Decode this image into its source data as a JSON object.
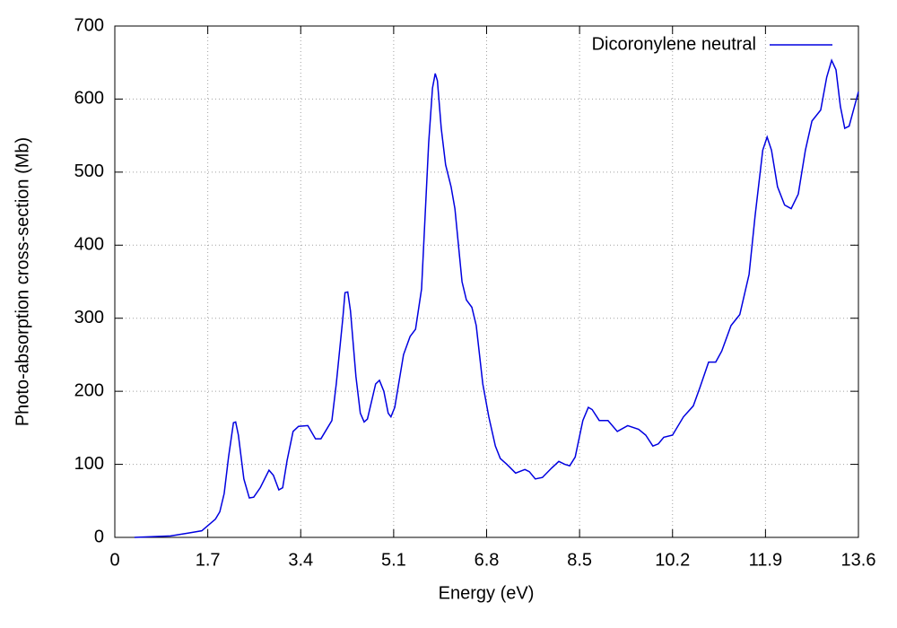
{
  "chart_data": {
    "type": "line",
    "x_label": "Energy (eV)",
    "y_label": "Photo-absorption cross-section (Mb)",
    "x": [
      0.36,
      1.02,
      1.35,
      1.59,
      1.84,
      1.92,
      2.0,
      2.08,
      2.17,
      2.21,
      2.26,
      2.36,
      2.46,
      2.54,
      2.66,
      2.82,
      2.9,
      3.0,
      3.07,
      3.15,
      3.26,
      3.36,
      3.53,
      3.67,
      3.77,
      3.97,
      4.05,
      4.17,
      4.21,
      4.26,
      4.31,
      4.41,
      4.49,
      4.56,
      4.62,
      4.77,
      4.84,
      4.92,
      5.0,
      5.05,
      5.12,
      5.28,
      5.4,
      5.5,
      5.61,
      5.74,
      5.81,
      5.86,
      5.9,
      5.97,
      6.05,
      6.15,
      6.22,
      6.35,
      6.43,
      6.53,
      6.61,
      6.73,
      6.84,
      6.96,
      7.05,
      7.17,
      7.33,
      7.5,
      7.58,
      7.69,
      7.82,
      7.99,
      8.12,
      8.23,
      8.32,
      8.42,
      8.56,
      8.66,
      8.73,
      8.86,
      9.02,
      9.19,
      9.38,
      9.58,
      9.71,
      9.84,
      9.94,
      10.04,
      10.2,
      10.4,
      10.58,
      10.7,
      10.86,
      10.99,
      11.1,
      11.27,
      11.43,
      11.6,
      11.71,
      11.85,
      11.93,
      12.01,
      12.12,
      12.25,
      12.37,
      12.5,
      12.63,
      12.75,
      12.91,
      13.02,
      13.11,
      13.19,
      13.27,
      13.35,
      13.43,
      13.6
    ],
    "series": [
      {
        "name": "Dicoronylene neutral",
        "color": "#0000e0",
        "values": [
          0,
          2,
          6,
          9,
          25,
          35,
          60,
          110,
          157,
          158,
          140,
          80,
          54,
          55,
          68,
          92,
          85,
          65,
          68,
          105,
          145,
          152,
          153,
          135,
          135,
          160,
          210,
          300,
          335,
          336,
          310,
          220,
          170,
          158,
          162,
          210,
          215,
          200,
          170,
          165,
          178,
          250,
          275,
          285,
          340,
          540,
          615,
          635,
          625,
          560,
          510,
          480,
          450,
          350,
          325,
          315,
          290,
          210,
          165,
          125,
          108,
          100,
          88,
          93,
          90,
          80,
          82,
          95,
          104,
          100,
          98,
          110,
          160,
          178,
          175,
          160,
          160,
          145,
          153,
          148,
          140,
          125,
          128,
          137,
          140,
          165,
          180,
          205,
          240,
          240,
          255,
          290,
          305,
          360,
          440,
          530,
          548,
          530,
          480,
          455,
          450,
          470,
          530,
          570,
          585,
          630,
          653,
          640,
          590,
          560,
          563,
          610
        ]
      }
    ],
    "xlim": [
      0,
      13.6
    ],
    "xticks": [
      0,
      1.7,
      3.4,
      5.1,
      6.8,
      8.5,
      10.2,
      11.9,
      13.6
    ],
    "ylim": [
      0,
      700
    ],
    "yticks": [
      0,
      100,
      200,
      300,
      400,
      500,
      600,
      700
    ],
    "grid": true,
    "legend": "top-right"
  }
}
